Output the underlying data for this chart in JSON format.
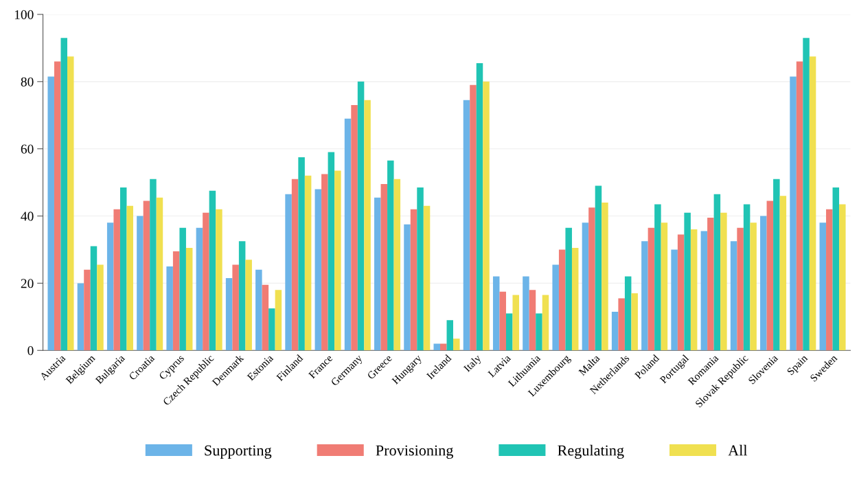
{
  "chart_data": {
    "type": "bar",
    "categories": [
      "Austria",
      "Belgium",
      "Bulgaria",
      "Croatia",
      "Cyprus",
      "Czech Republic",
      "Denmark",
      "Estonia",
      "Finland",
      "France",
      "Germany",
      "Greece",
      "Hungary",
      "Ireland",
      "Italy",
      "Latvia",
      "Lithuania",
      "Luxembourg",
      "Malta",
      "Netherlands",
      "Poland",
      "Portugal",
      "Romania",
      "Slovak Republic",
      "Slovenia",
      "Spain",
      "Sweden"
    ],
    "series": [
      {
        "name": "Supporting",
        "color": "#6cb4e8",
        "values": [
          81.5,
          20,
          38,
          40,
          25,
          36.5,
          21.5,
          24,
          46.5,
          48,
          69,
          45.5,
          37.5,
          2,
          74.5,
          22,
          22,
          25.5,
          38,
          11.5,
          32.5,
          30,
          35.5,
          32.5,
          40,
          81.5,
          38
        ]
      },
      {
        "name": "Provisioning",
        "color": "#f07c74",
        "values": [
          86,
          24,
          42,
          44.5,
          29.5,
          41,
          25.5,
          19.5,
          51,
          52.5,
          73,
          49.5,
          42,
          2,
          79,
          17.5,
          18,
          30,
          42.5,
          15.5,
          36.5,
          34.5,
          39.5,
          36.5,
          44.5,
          86,
          42
        ]
      },
      {
        "name": "Regulating",
        "color": "#20c4b4",
        "values": [
          93,
          31,
          48.5,
          51,
          36.5,
          47.5,
          32.5,
          12.5,
          57.5,
          59,
          80,
          56.5,
          48.5,
          9,
          85.5,
          11,
          11,
          36.5,
          49,
          22,
          43.5,
          41,
          46.5,
          43.5,
          51,
          93,
          48.5
        ]
      },
      {
        "name": "All",
        "color": "#f0e050",
        "values": [
          87.5,
          25.5,
          43,
          45.5,
          30.5,
          42,
          27,
          18,
          52,
          53.5,
          74.5,
          51,
          43,
          3.5,
          80,
          16.5,
          16.5,
          30.5,
          44,
          17,
          38,
          36,
          41,
          38,
          46,
          87.5,
          43.5
        ]
      }
    ],
    "ylim": [
      0,
      100
    ],
    "yticks": [
      0,
      20,
      40,
      60,
      80,
      100
    ],
    "grid": "y",
    "legend": "bottom"
  }
}
